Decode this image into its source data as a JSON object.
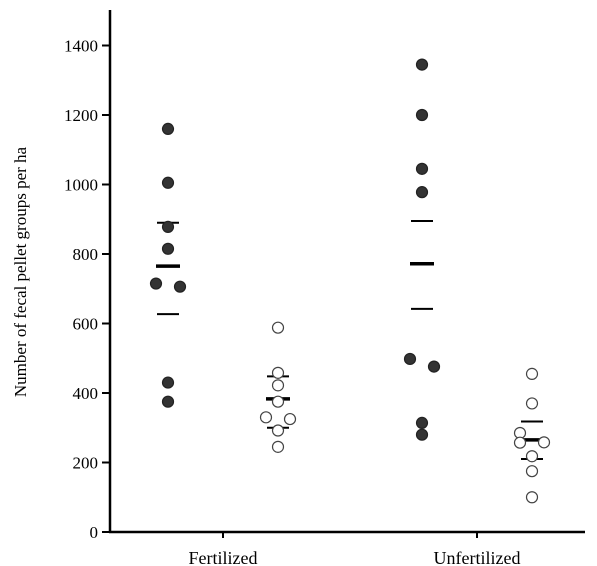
{
  "chart_data": {
    "type": "scatter",
    "title": "",
    "xlabel": "",
    "ylabel": "Number of fecal pellet groups per ha",
    "ylim": [
      0,
      1500
    ],
    "yticks": [
      0,
      200,
      400,
      600,
      800,
      1000,
      1200,
      1400
    ],
    "categories": [
      "Fertilized",
      "Unfertilized"
    ],
    "grid": false,
    "legend": "none",
    "series": [
      {
        "marker": "filled",
        "color": "#333333",
        "groups": [
          {
            "category": "Fertilized",
            "points": [
              1160,
              1005,
              878,
              815,
              715,
              706,
              430,
              375
            ],
            "mean": 765,
            "upper": 890,
            "lower": 627
          },
          {
            "category": "Unfertilized",
            "points": [
              1345,
              1200,
              1045,
              978,
              498,
              476,
              314,
              280
            ],
            "mean": 772,
            "upper": 895,
            "lower": 642
          }
        ]
      },
      {
        "marker": "open",
        "color": "#ffffff",
        "groups": [
          {
            "category": "Fertilized",
            "points": [
              588,
              458,
              422,
              375,
              330,
              325,
              292,
              245
            ],
            "mean": 383,
            "upper": 448,
            "lower": 300
          },
          {
            "category": "Unfertilized",
            "points": [
              455,
              370,
              285,
              258,
              257,
              218,
              175,
              100
            ],
            "mean": 265,
            "upper": 318,
            "lower": 210
          }
        ]
      }
    ]
  }
}
